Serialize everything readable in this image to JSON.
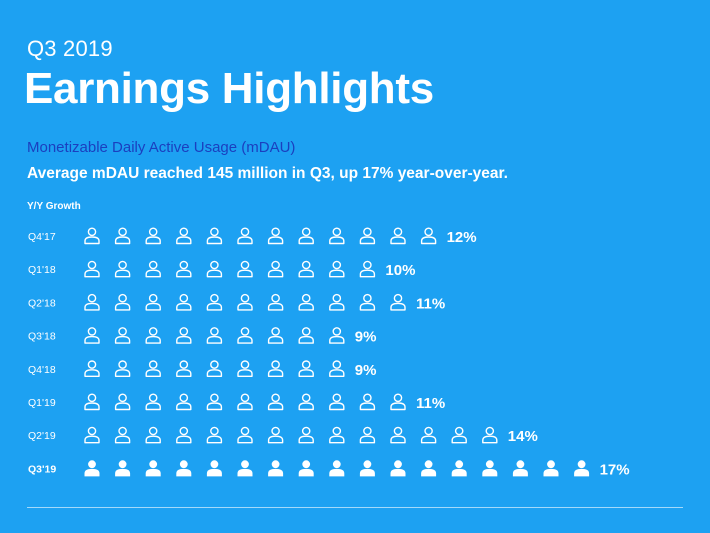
{
  "slide": {
    "eyebrow": "Q3 2019",
    "title": "Earnings Highlights",
    "subtitle": "Monetizable Daily Active Usage (mDAU)",
    "description": "Average mDAU reached 145 million in Q3, up 17% year-over-year."
  },
  "colors": {
    "background": "#1da1f2",
    "accent_text": "#1b3fbf",
    "foreground": "#ffffff"
  },
  "chart_data": {
    "type": "bar",
    "title": "Y/Y Growth",
    "xlabel": "",
    "ylabel": "",
    "categories": [
      "Q4'17",
      "Q1'18",
      "Q2'18",
      "Q3'18",
      "Q4'18",
      "Q1'19",
      "Q2'19",
      "Q3'19"
    ],
    "values": [
      12,
      10,
      11,
      9,
      9,
      11,
      14,
      17
    ],
    "value_labels": [
      "12%",
      "10%",
      "11%",
      "9%",
      "9%",
      "11%",
      "14%",
      "17%"
    ],
    "highlight": "Q3'19",
    "encoding": "one person icon per percentage point",
    "icon": "person-icon"
  }
}
